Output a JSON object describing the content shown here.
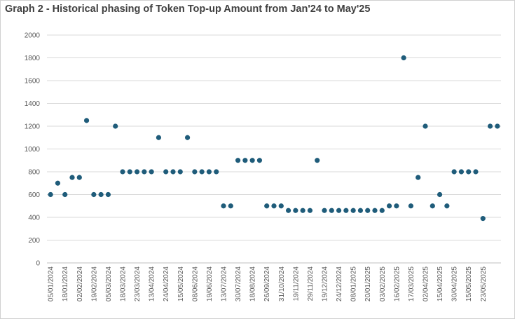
{
  "chart_data": {
    "type": "scatter",
    "title": "Graph 2 - Historical phasing of Token Top-up Amount from Jan'24 to May'25",
    "xlabel": "",
    "ylabel": "",
    "ylim": [
      0,
      2000
    ],
    "y_ticks": [
      "0",
      "200",
      "400",
      "600",
      "800",
      "1000",
      "1200",
      "1400",
      "1600",
      "1800",
      "2000"
    ],
    "x_tick_labels": [
      "05/01/2024",
      "18/01/2024",
      "02/02/2024",
      "19/02/2024",
      "05/03/2024",
      "18/03/2024",
      "23/03/2024",
      "13/04/2024",
      "24/04/2024",
      "15/05/2024",
      "08/06/2024",
      "19/06/2024",
      "13/07/2024",
      "30/07/2024",
      "18/08/2024",
      "26/09/2024",
      "31/10/2024",
      "19/11/2024",
      "29/11/2024",
      "19/12/2024",
      "24/12/2024",
      "08/01/2025",
      "20/01/2025",
      "03/02/2025",
      "16/02/2025",
      "17/03/2025",
      "02/04/2025",
      "15/04/2025",
      "30/04/2025",
      "15/05/2025",
      "23/05/2025"
    ],
    "grid": "horizontal",
    "legend": "none",
    "marker_color": "#1f5c7a",
    "values": [
      600,
      700,
      600,
      750,
      750,
      1250,
      600,
      600,
      600,
      1200,
      800,
      800,
      800,
      800,
      800,
      1100,
      800,
      800,
      800,
      1100,
      800,
      800,
      800,
      800,
      500,
      500,
      900,
      900,
      900,
      900,
      500,
      500,
      500,
      460,
      460,
      460,
      460,
      900,
      460,
      460,
      460,
      460,
      460,
      460,
      460,
      460,
      460,
      500,
      500,
      1800,
      500,
      750,
      1200,
      500,
      600,
      500,
      800,
      800,
      800,
      800,
      390,
      1200,
      1200
    ]
  }
}
